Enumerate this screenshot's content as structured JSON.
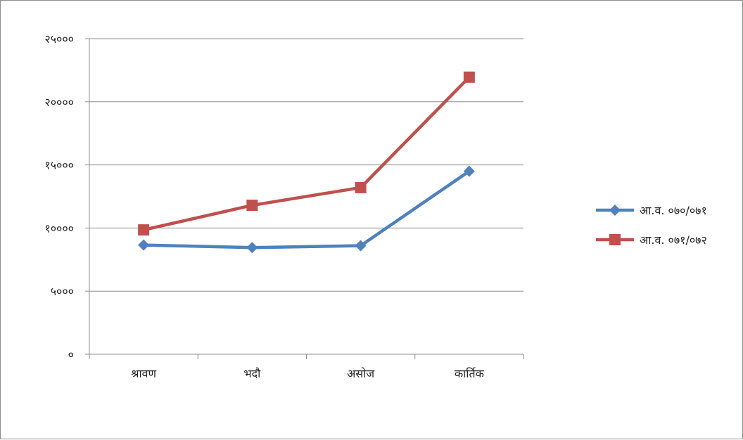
{
  "chart_data": {
    "type": "line",
    "categories": [
      "श्रावण",
      "भदौ",
      "असोज",
      "कार्तिक"
    ],
    "series": [
      {
        "name": "आ.व. ०७०/०७१",
        "values": [
          8650,
          8450,
          8600,
          14500
        ],
        "color": "#4f81bd",
        "marker": "diamond"
      },
      {
        "name": "आ.व. ०७१/०७२",
        "values": [
          9850,
          11800,
          13200,
          21950
        ],
        "color": "#c0504d",
        "marker": "square"
      }
    ],
    "ylim": [
      0,
      25000
    ],
    "yticks": [
      0,
      5000,
      10000,
      15000,
      20000,
      25000
    ],
    "ytick_labels": [
      "०",
      "५०००",
      "१००००",
      "१५०००",
      "२००००",
      "२५०००"
    ],
    "grid": true,
    "legend_position": "right"
  }
}
